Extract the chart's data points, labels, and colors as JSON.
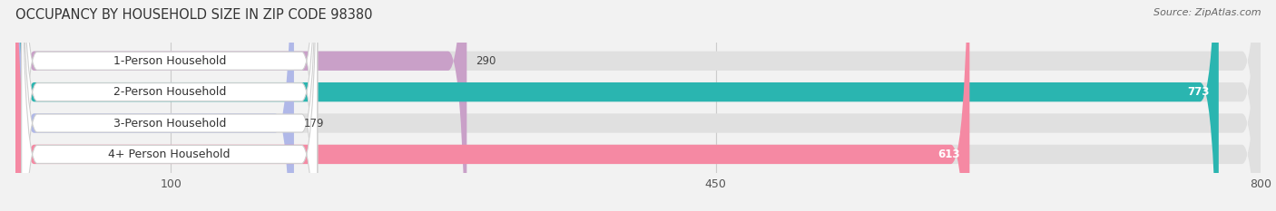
{
  "title": "OCCUPANCY BY HOUSEHOLD SIZE IN ZIP CODE 98380",
  "source": "Source: ZipAtlas.com",
  "categories": [
    "1-Person Household",
    "2-Person Household",
    "3-Person Household",
    "4+ Person Household"
  ],
  "values": [
    290,
    773,
    179,
    613
  ],
  "bar_colors": [
    "#c9a0c8",
    "#2ab5b0",
    "#b0b8e8",
    "#f589a3"
  ],
  "bar_bg_color": "#e0e0e0",
  "label_bg_color": "#ffffff",
  "x_ticks": [
    100,
    450,
    800
  ],
  "x_min": 0,
  "x_max": 800,
  "title_fontsize": 10.5,
  "source_fontsize": 8,
  "label_fontsize": 9,
  "value_fontsize": 8.5,
  "tick_fontsize": 9,
  "bar_height": 0.62,
  "fig_bg_color": "#f2f2f2"
}
